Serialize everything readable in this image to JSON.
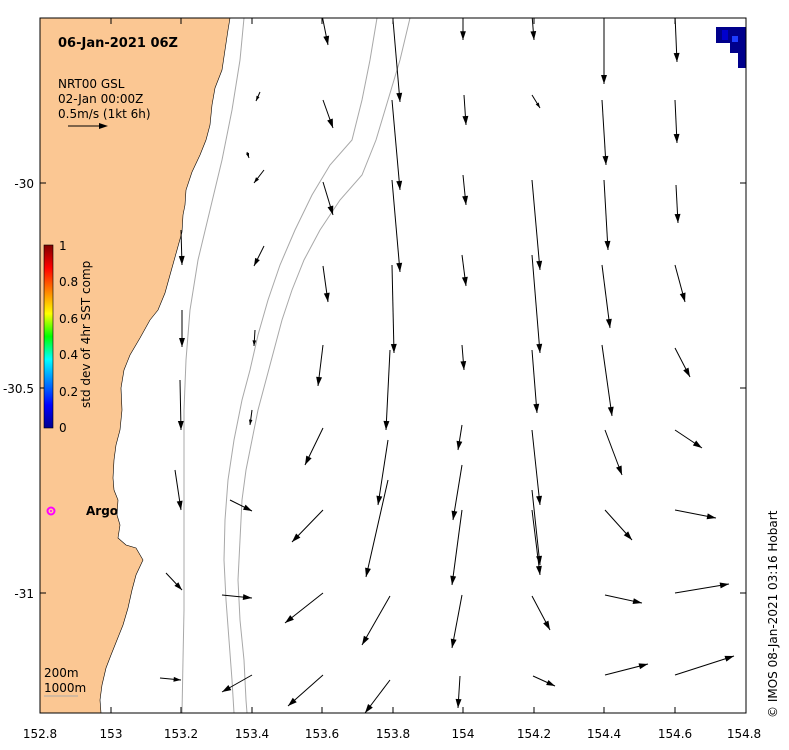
{
  "map": {
    "title": "06-Jan-2021 06Z",
    "source_line1": "NRT00 GSL",
    "source_line2": "02-Jan 00:00Z",
    "scale_label": "0.5m/s (1kt 6h)",
    "float_label": "Argo",
    "bathy_label_1": "200m",
    "bathy_label_2": "1000m",
    "credit": "© IMOS 08-Jan-2021 03:16 Hobart",
    "colorbar_label": "std dev of 4hr SST comp",
    "colorbar_ticks": [
      "0",
      "0.2",
      "0.4",
      "0.6",
      "0.8",
      "1"
    ],
    "x_ticks": [
      "152.8",
      "153",
      "153.2",
      "153.4",
      "153.6",
      "153.8",
      "154",
      "154.2",
      "154.4",
      "154.6",
      "154.8"
    ],
    "y_ticks": [
      "-30",
      "-30.5",
      "-31"
    ],
    "lon_range": [
      152.8,
      154.8
    ],
    "lat_range": [
      -31.3,
      -29.6
    ],
    "colors": {
      "land": "#fbc793",
      "bathy_contour": "#a8a8a8",
      "argo_marker": "#ff00ff",
      "high_variance": "#00008b"
    }
  }
}
